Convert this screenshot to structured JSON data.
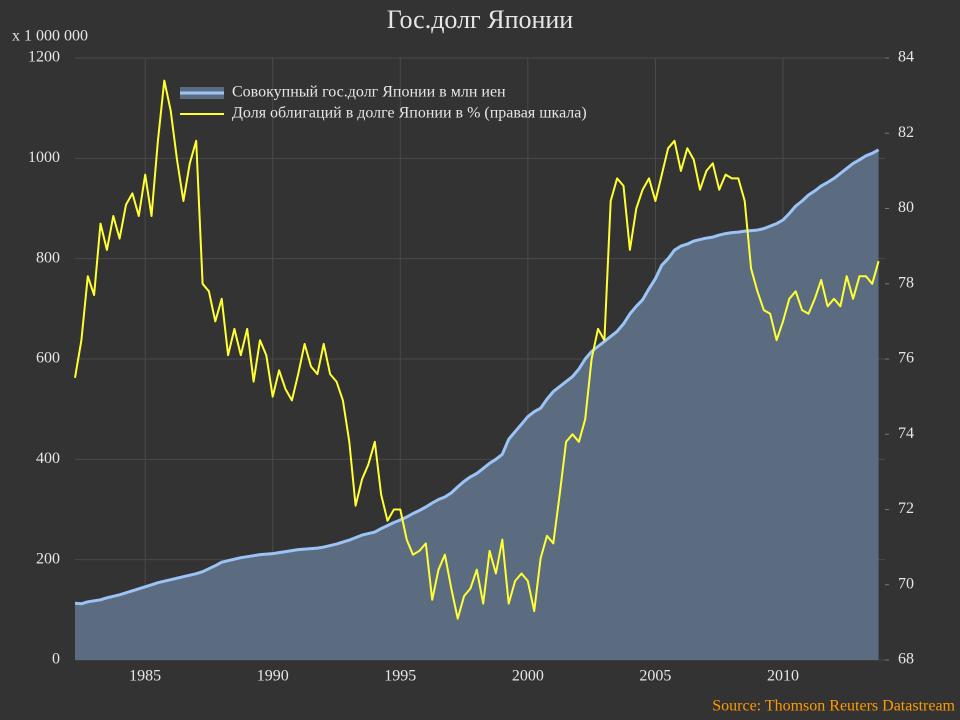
{
  "chart_data": {
    "type": "line",
    "title": "Гос.долг Японии",
    "y_unit_label": "x 1 000 000",
    "source": "Source: Thomson Reuters Datastream",
    "source_color": "#ff9900",
    "background": "#333333",
    "grid": true,
    "legend": "upper left",
    "xlim": [
      1982.25,
      2014.0
    ],
    "xticks": [
      1985,
      1990,
      1995,
      2000,
      2005,
      2010
    ],
    "ylim": [
      0,
      1200
    ],
    "yticks": [
      0,
      200,
      400,
      600,
      800,
      1000,
      1200
    ],
    "y2lim": [
      68,
      84
    ],
    "y2ticks": [
      68,
      70,
      72,
      74,
      76,
      78,
      80,
      82,
      84
    ],
    "x": [
      1982.25,
      1982.5,
      1982.75,
      1983,
      1983.25,
      1983.5,
      1983.75,
      1984,
      1984.25,
      1984.5,
      1984.75,
      1985,
      1985.25,
      1985.5,
      1985.75,
      1986,
      1986.25,
      1986.5,
      1986.75,
      1987,
      1987.25,
      1987.5,
      1987.75,
      1988,
      1988.25,
      1988.5,
      1988.75,
      1989,
      1989.25,
      1989.5,
      1989.75,
      1990,
      1990.25,
      1990.5,
      1990.75,
      1991,
      1991.25,
      1991.5,
      1991.75,
      1992,
      1992.25,
      1992.5,
      1992.75,
      1993,
      1993.25,
      1993.5,
      1993.75,
      1994,
      1994.25,
      1994.5,
      1994.75,
      1995,
      1995.25,
      1995.5,
      1995.75,
      1996,
      1996.25,
      1996.5,
      1996.75,
      1997,
      1997.25,
      1997.5,
      1997.75,
      1998,
      1998.25,
      1998.5,
      1998.75,
      1999,
      1999.25,
      1999.5,
      1999.75,
      2000,
      2000.25,
      2000.5,
      2000.75,
      2001,
      2001.25,
      2001.5,
      2001.75,
      2002,
      2002.25,
      2002.5,
      2002.75,
      2003,
      2003.25,
      2003.5,
      2003.75,
      2004,
      2004.25,
      2004.5,
      2004.75,
      2005,
      2005.25,
      2005.5,
      2005.75,
      2006,
      2006.25,
      2006.5,
      2006.75,
      2007,
      2007.25,
      2007.5,
      2007.75,
      2008,
      2008.25,
      2008.5,
      2008.75,
      2009,
      2009.25,
      2009.5,
      2009.75,
      2010,
      2010.25,
      2010.5,
      2010.75,
      2011,
      2011.25,
      2011.5,
      2011.75,
      2012,
      2012.25,
      2012.5,
      2012.75,
      2013,
      2013.25,
      2013.5,
      2013.75
    ],
    "series": [
      {
        "name": "Совокупный гос.долг Японии в млн иен",
        "color": "#9cc3f5",
        "fill": "#5b6c80",
        "axis": "y",
        "values": [
          113,
          112,
          116,
          118,
          120,
          124,
          127,
          130,
          134,
          138,
          142,
          146,
          150,
          154,
          157,
          160,
          163,
          166,
          169,
          172,
          176,
          182,
          188,
          195,
          198,
          201,
          204,
          206,
          208,
          210,
          211,
          212,
          214,
          216,
          218,
          220,
          221,
          222,
          223,
          225,
          228,
          231,
          235,
          239,
          244,
          249,
          252,
          255,
          262,
          268,
          274,
          279,
          285,
          292,
          298,
          305,
          313,
          320,
          325,
          333,
          345,
          356,
          365,
          372,
          382,
          392,
          400,
          410,
          440,
          455,
          470,
          485,
          495,
          502,
          520,
          535,
          545,
          555,
          565,
          580,
          600,
          615,
          625,
          635,
          645,
          655,
          670,
          690,
          705,
          718,
          740,
          760,
          787,
          800,
          817,
          825,
          829,
          835,
          838,
          841,
          843,
          847,
          850,
          852,
          853,
          855,
          856,
          857,
          860,
          865,
          870,
          877,
          890,
          905,
          915,
          927,
          935,
          945,
          952,
          960,
          970,
          980,
          990,
          997,
          1005,
          1010,
          1017
        ]
      },
      {
        "name": "Доля облигаций в долге Японии в % (правая шкала)",
        "color": "#ffff33",
        "axis": "y2",
        "values": [
          75.5,
          76.5,
          78.2,
          77.7,
          79.6,
          78.9,
          79.8,
          79.2,
          80.1,
          80.4,
          79.8,
          80.9,
          79.8,
          81.8,
          83.4,
          82.6,
          81.3,
          80.2,
          81.2,
          81.8,
          78.0,
          77.8,
          77.0,
          77.6,
          76.1,
          76.8,
          76.1,
          76.8,
          75.4,
          76.5,
          76.1,
          75.0,
          75.7,
          75.2,
          74.9,
          75.6,
          76.4,
          75.8,
          75.6,
          76.4,
          75.6,
          75.4,
          74.9,
          73.8,
          72.1,
          72.8,
          73.2,
          73.8,
          72.4,
          71.7,
          72.0,
          72.0,
          71.2,
          70.8,
          70.9,
          71.1,
          69.6,
          70.4,
          70.8,
          69.9,
          69.1,
          69.7,
          69.9,
          70.4,
          69.5,
          70.9,
          70.3,
          71.2,
          69.5,
          70.1,
          70.3,
          70.1,
          69.3,
          70.7,
          71.3,
          71.1,
          72.4,
          73.8,
          74.0,
          73.8,
          74.4,
          76.0,
          76.8,
          76.5,
          80.2,
          80.8,
          80.6,
          78.9,
          80.0,
          80.5,
          80.8,
          80.2,
          80.9,
          81.6,
          81.8,
          81.0,
          81.6,
          81.3,
          80.5,
          81.0,
          81.2,
          80.5,
          80.9,
          80.8,
          80.8,
          80.2,
          78.4,
          77.8,
          77.3,
          77.2,
          76.5,
          77.0,
          77.6,
          77.8,
          77.3,
          77.2,
          77.6,
          78.1,
          77.4,
          77.6,
          77.4,
          78.2,
          77.6,
          78.2,
          78.2,
          78.0,
          78.6
        ]
      }
    ]
  }
}
